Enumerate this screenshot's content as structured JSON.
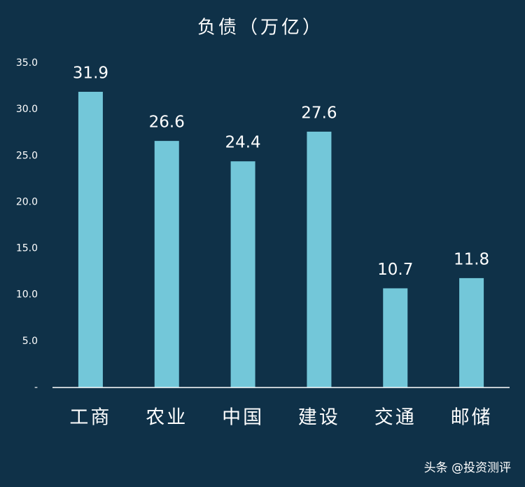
{
  "chart_data": {
    "type": "bar",
    "title": "负债（万亿）",
    "categories": [
      "工商",
      "农业",
      "中国",
      "建设",
      "交通",
      "邮储"
    ],
    "values": [
      31.9,
      26.6,
      24.4,
      27.6,
      10.7,
      11.8
    ],
    "color": "#73c7d9",
    "ylim": [
      0,
      35
    ],
    "yticks": [
      {
        "value": 0,
        "label": "-"
      },
      {
        "value": 5,
        "label": "5.0"
      },
      {
        "value": 10,
        "label": "10.0"
      },
      {
        "value": 15,
        "label": "15.0"
      },
      {
        "value": 20,
        "label": "20.0"
      },
      {
        "value": 25,
        "label": "25.0"
      },
      {
        "value": 30,
        "label": "30.0"
      },
      {
        "value": 35,
        "label": "35.0"
      }
    ],
    "grid": false,
    "watermark": "头条 @投资测评"
  }
}
